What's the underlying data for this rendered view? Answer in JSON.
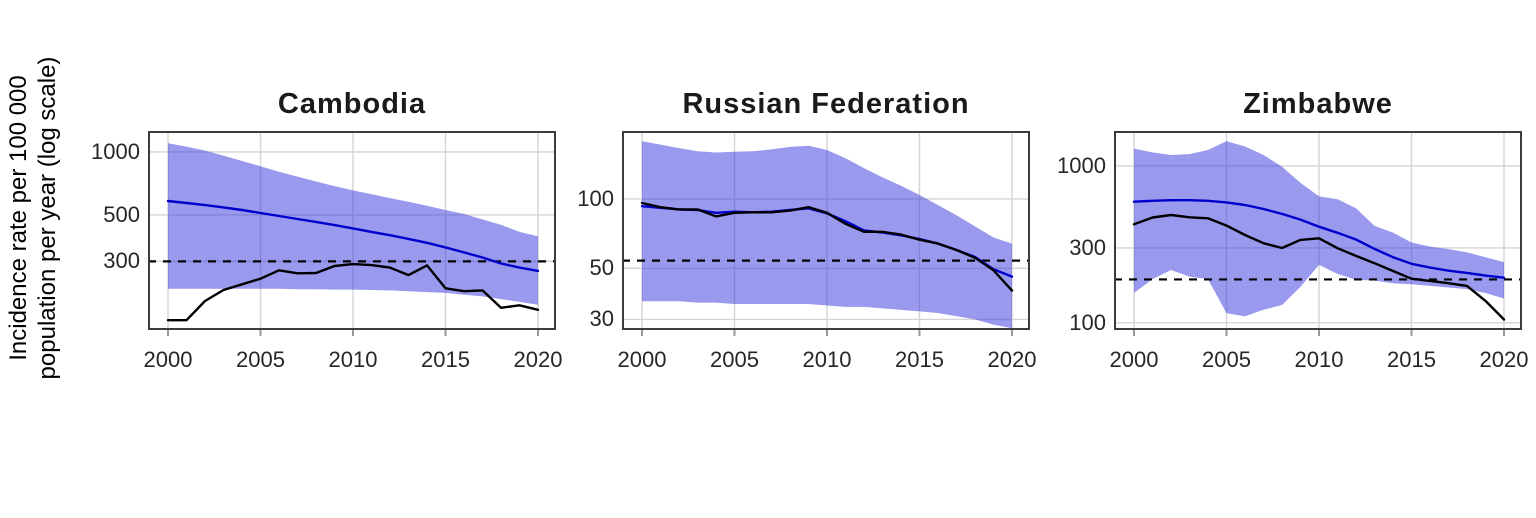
{
  "ylabel": {
    "line1": "Incidence rate per 100 000",
    "line2": "population per year (log scale)"
  },
  "colors": {
    "band_base": "#3333dd",
    "band_alpha": 0.5,
    "estimate_line": "#0000cd",
    "notification_line": "#000000",
    "dashed_line": "#000000",
    "gridline": "#d4d4d4",
    "panel_border": "#3c3c3c",
    "tick_mark": "#999999",
    "tick_label": "#262626",
    "title": "#1a1a1a",
    "background": "#ffffff"
  },
  "x_axis": {
    "range": [
      2000,
      2020
    ],
    "ticks": [
      2000,
      2005,
      2010,
      2015,
      2020
    ]
  },
  "chart_data": [
    {
      "type": "line",
      "title": "Cambodia",
      "y_scale": "log",
      "ylim": [
        141,
        1259
      ],
      "y_ticks": [
        1000,
        500,
        300
      ],
      "hline": 300,
      "x": [
        2000,
        2001,
        2002,
        2003,
        2004,
        2005,
        2006,
        2007,
        2008,
        2009,
        2010,
        2011,
        2012,
        2013,
        2014,
        2015,
        2016,
        2017,
        2018,
        2019,
        2020
      ],
      "series": [
        {
          "name": "estimated incidence",
          "values": [
            583,
            570,
            557,
            543,
            528,
            511,
            494,
            478,
            463,
            447,
            431,
            415,
            400,
            384,
            368,
            350,
            331,
            313,
            293,
            280,
            270
          ]
        },
        {
          "name": "notifications",
          "values": [
            157,
            157,
            194,
            219,
            233,
            248,
            272,
            263,
            264,
            285,
            291,
            288,
            280,
            258,
            287,
            223,
            216,
            218,
            180,
            185,
            176
          ]
        },
        {
          "name": "uncertainty upper",
          "values": [
            1100,
            1060,
            1015,
            960,
            905,
            855,
            805,
            762,
            722,
            687,
            655,
            628,
            602,
            578,
            553,
            528,
            505,
            476,
            448,
            415,
            395
          ]
        },
        {
          "name": "uncertainty lower",
          "values": [
            222,
            222,
            222,
            222,
            222,
            222,
            222,
            221,
            221,
            220,
            220,
            219,
            218,
            216,
            214,
            212,
            208,
            204,
            198,
            192,
            186
          ]
        }
      ]
    },
    {
      "type": "line",
      "title": "Russian Federation",
      "y_scale": "log",
      "ylim": [
        27,
        197
      ],
      "y_ticks": [
        100,
        50,
        30
      ],
      "hline": 54,
      "x": [
        2000,
        2001,
        2002,
        2003,
        2004,
        2005,
        2006,
        2007,
        2008,
        2009,
        2010,
        2011,
        2012,
        2013,
        2014,
        2015,
        2016,
        2017,
        2018,
        2019,
        2020
      ],
      "series": [
        {
          "name": "estimated incidence",
          "values": [
            93,
            91.5,
            90,
            89.5,
            87,
            88,
            87.5,
            88,
            89.5,
            91,
            86.5,
            80,
            73,
            71.5,
            69.5,
            67,
            64,
            60,
            56,
            49.5,
            46
          ]
        },
        {
          "name": "notifications",
          "values": [
            96,
            92,
            90,
            90,
            84,
            87,
            87.5,
            87.5,
            89,
            92,
            87,
            78,
            72,
            72,
            70,
            66.5,
            64,
            60,
            55.5,
            49,
            40
          ]
        },
        {
          "name": "uncertainty upper",
          "values": [
            178,
            172,
            166,
            161,
            159,
            160,
            161,
            164,
            168,
            170,
            163,
            150,
            136,
            124,
            114,
            104,
            94,
            85,
            76,
            68,
            64
          ]
        },
        {
          "name": "uncertainty lower",
          "values": [
            36,
            36,
            36,
            35.5,
            35.5,
            35,
            35,
            35,
            35,
            35,
            34.5,
            34,
            34,
            33.5,
            33,
            32.5,
            32,
            31,
            30,
            28.5,
            27.5
          ]
        }
      ]
    },
    {
      "type": "line",
      "title": "Zimbabwe",
      "y_scale": "log",
      "ylim": [
        90,
        1671
      ],
      "y_ticks": [
        1000,
        300,
        100
      ],
      "hline": 189,
      "x": [
        2000,
        2001,
        2002,
        2003,
        2004,
        2005,
        2006,
        2007,
        2008,
        2009,
        2010,
        2011,
        2012,
        2013,
        2014,
        2015,
        2016,
        2017,
        2018,
        2019,
        2020
      ],
      "series": [
        {
          "name": "estimated incidence",
          "values": [
            592,
            600,
            605,
            605,
            600,
            586,
            564,
            532,
            495,
            455,
            410,
            375,
            340,
            296,
            262,
            238,
            225,
            215,
            208,
            200,
            194
          ]
        },
        {
          "name": "notifications",
          "values": [
            425,
            469,
            487,
            471,
            464,
            417,
            363,
            322,
            300,
            338,
            346,
            299,
            267,
            240,
            214,
            191,
            185,
            179,
            172,
            138,
            105
          ]
        },
        {
          "name": "uncertainty upper",
          "values": [
            1290,
            1220,
            1175,
            1190,
            1265,
            1440,
            1330,
            1175,
            990,
            780,
            640,
            613,
            537,
            415,
            376,
            325,
            306,
            295,
            281,
            262,
            244
          ]
        },
        {
          "name": "uncertainty lower",
          "values": [
            155,
            190,
            217,
            197,
            190,
            115,
            110,
            121,
            130,
            170,
            234,
            205,
            188,
            186,
            179,
            176,
            172,
            168,
            164,
            155,
            143
          ]
        }
      ]
    }
  ]
}
